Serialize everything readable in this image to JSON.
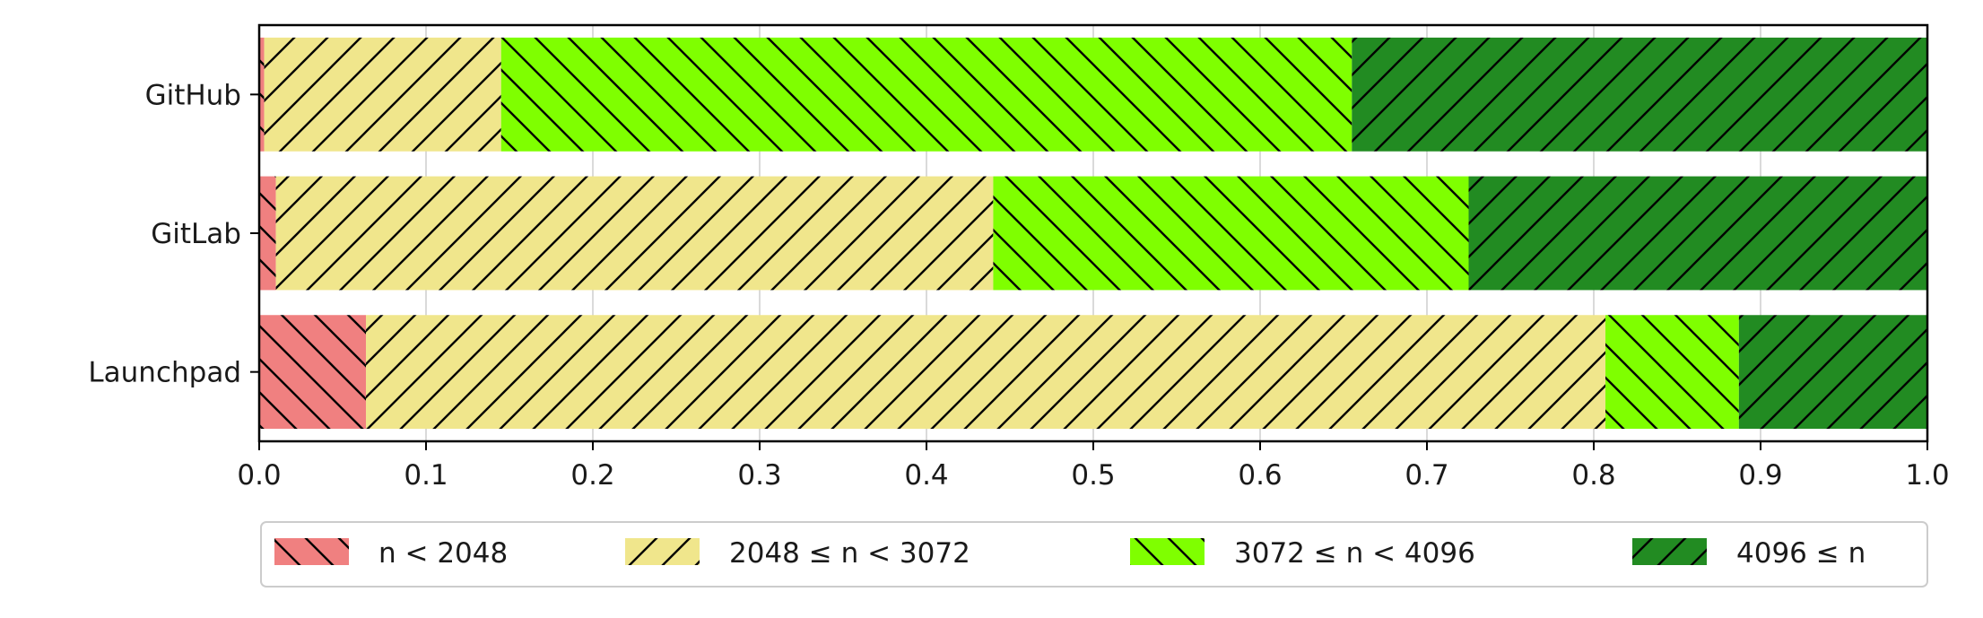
{
  "chart_data": {
    "type": "bar",
    "orientation": "horizontal",
    "stacked": true,
    "categories": [
      "GitHub",
      "GitLab",
      "Launchpad"
    ],
    "series": [
      {
        "name": "n < 2048",
        "values": [
          0.003,
          0.01,
          0.064
        ],
        "color": "#f08080",
        "hatch": "backslash"
      },
      {
        "name": "2048 ≤ n < 3072",
        "values": [
          0.142,
          0.43,
          0.743
        ],
        "color": "#f0e68c",
        "hatch": "slash"
      },
      {
        "name": "3072 ≤ n < 4096",
        "values": [
          0.51,
          0.285,
          0.08
        ],
        "color": "#7fff00",
        "hatch": "backslash"
      },
      {
        "name": "4096 ≤ n",
        "values": [
          0.345,
          0.275,
          0.113
        ],
        "color": "#228b22",
        "hatch": "slash"
      }
    ],
    "xticks": [
      "0.0",
      "0.1",
      "0.2",
      "0.3",
      "0.4",
      "0.5",
      "0.6",
      "0.7",
      "0.8",
      "0.9",
      "1.0"
    ],
    "xlim": [
      0,
      1
    ],
    "grid": "vertical",
    "legend_position": "bottom"
  }
}
